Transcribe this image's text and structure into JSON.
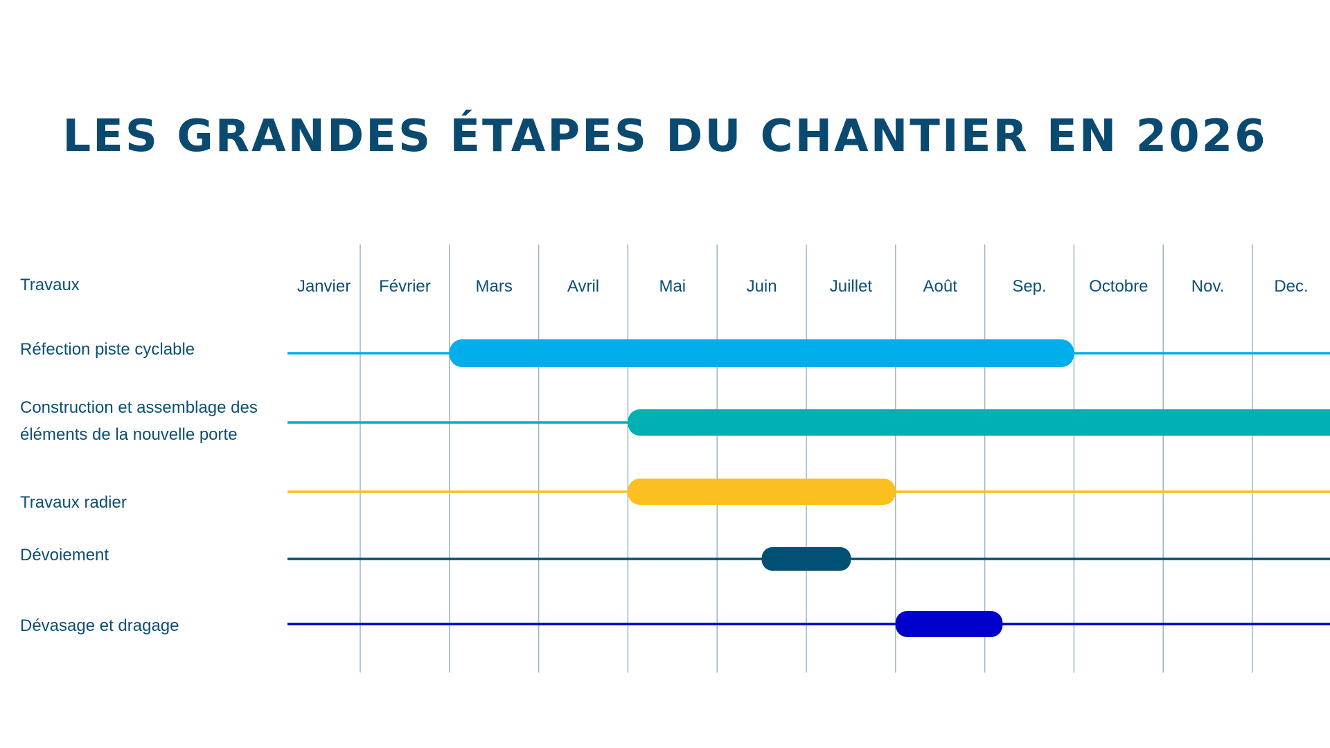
{
  "title": "Les grandes étapes du chantier en 2026",
  "chart_data": {
    "type": "gantt",
    "title": "Les grandes étapes du chantier en 2026",
    "row_header": "Travaux",
    "categories": [
      "Janvier",
      "Février",
      "Mars",
      "Avril",
      "Mai",
      "Juin",
      "Juillet",
      "Août",
      "Sep.",
      "Octobre",
      "Nov.",
      "Dec."
    ],
    "xlim": [
      0,
      12
    ],
    "grid": true,
    "tasks": [
      {
        "name": "Réfection piste cyclable",
        "lines": [
          "Réfection piste cyclable"
        ],
        "start": 2.0,
        "end": 9.0,
        "color": "#00aeeb"
      },
      {
        "name": "Construction et assemblage des éléments de la nouvelle porte",
        "lines": [
          "Construction et assemblage des",
          "éléments de la nouvelle porte"
        ],
        "start": 4.0,
        "end": 12.0,
        "color": "#00b0b3"
      },
      {
        "name": "Travaux radier",
        "lines": [
          "Travaux radier"
        ],
        "start": 4.0,
        "end": 7.0,
        "color": "#fbbf1f"
      },
      {
        "name": "Dévoiement",
        "lines": [
          "Dévoiement"
        ],
        "start": 5.5,
        "end": 6.5,
        "color": "#005075"
      },
      {
        "name": "Dévasage et dragage",
        "lines": [
          "Dévasage et dragage"
        ],
        "start": 7.0,
        "end": 8.2,
        "color": "#0000cc"
      }
    ]
  }
}
